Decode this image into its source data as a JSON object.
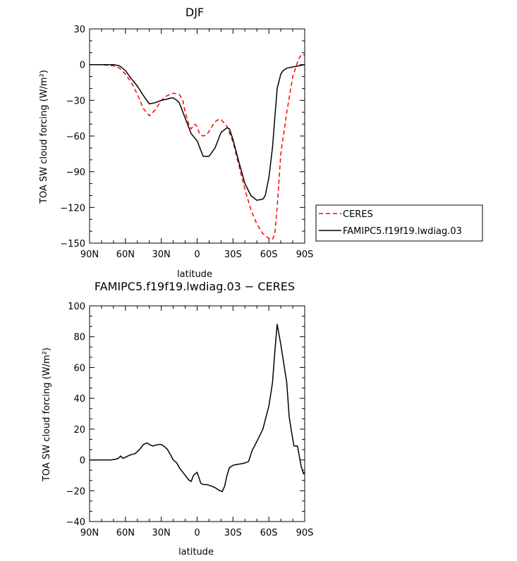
{
  "colors": {
    "ceres": "#ff0000",
    "model": "#000000",
    "axis": "#000000",
    "background": "#ffffff"
  },
  "chart_data": [
    {
      "type": "line",
      "title": "DJF",
      "xlabel": "latitude",
      "ylabel": "TOA SW cloud forcing (W/m²)",
      "xlim": [
        -90,
        90
      ],
      "ylim": [
        -150,
        30
      ],
      "xticks": [
        -90,
        -60,
        -30,
        0,
        30,
        60,
        90
      ],
      "xticklabels": [
        "90N",
        "60N",
        "30N",
        "0",
        "30S",
        "60S",
        "90S"
      ],
      "yticks": [
        -150,
        -120,
        -90,
        -60,
        -30,
        0,
        30
      ],
      "yticklabels": [
        "−150",
        "−120",
        "−90",
        "−60",
        "−30",
        "0",
        "30"
      ],
      "grid": false,
      "legend": "right, outside plot",
      "series": [
        {
          "name": "CERES",
          "style": "dashed",
          "color": "#ff0000",
          "x": [
            -90,
            -80,
            -70,
            -65,
            -60,
            -55,
            -50,
            -45,
            -40,
            -35,
            -30,
            -25,
            -20,
            -15,
            -12,
            -10,
            -7,
            -5,
            -2,
            0,
            2,
            5,
            8,
            10,
            15,
            18,
            20,
            25,
            30,
            35,
            40,
            45,
            50,
            55,
            60,
            63,
            65,
            67,
            70,
            75,
            80,
            85,
            88,
            90
          ],
          "y": [
            0,
            0,
            -1,
            -3,
            -8,
            -15,
            -25,
            -37,
            -43,
            -38,
            -30,
            -26,
            -24,
            -25,
            -30,
            -40,
            -50,
            -54,
            -50,
            -52,
            -58,
            -60,
            -59,
            -56,
            -48,
            -46,
            -46,
            -52,
            -65,
            -85,
            -105,
            -122,
            -134,
            -142,
            -146,
            -147,
            -142,
            -120,
            -75,
            -40,
            -10,
            5,
            9,
            8
          ]
        },
        {
          "name": "FAMIPC5.f19f19.lwdiag.03",
          "style": "solid",
          "color": "#000000",
          "x": [
            -90,
            -80,
            -70,
            -65,
            -60,
            -55,
            -50,
            -45,
            -40,
            -35,
            -30,
            -25,
            -22,
            -20,
            -17,
            -15,
            -10,
            -5,
            0,
            5,
            10,
            15,
            20,
            25,
            27,
            30,
            35,
            40,
            45,
            50,
            55,
            57,
            60,
            63,
            65,
            67,
            70,
            72,
            75,
            80,
            85,
            90
          ],
          "y": [
            0,
            0,
            0,
            -1,
            -5,
            -12,
            -18,
            -26,
            -33,
            -32,
            -30,
            -29,
            -28,
            -28,
            -30,
            -32,
            -45,
            -58,
            -64,
            -77,
            -77,
            -70,
            -57,
            -53,
            -54,
            -63,
            -82,
            -100,
            -110,
            -114,
            -113,
            -110,
            -95,
            -70,
            -45,
            -20,
            -8,
            -5,
            -3,
            -2,
            -1,
            0
          ]
        }
      ]
    },
    {
      "type": "line",
      "title": "FAMIPC5.f19f19.lwdiag.03 − CERES",
      "xlabel": "latitude",
      "ylabel": "TOA SW cloud forcing (W/m²)",
      "xlim": [
        -90,
        90
      ],
      "ylim": [
        -40,
        100
      ],
      "xticks": [
        -90,
        -60,
        -30,
        0,
        30,
        60,
        90
      ],
      "xticklabels": [
        "90N",
        "60N",
        "30N",
        "0",
        "30S",
        "60S",
        "90S"
      ],
      "yticks": [
        -40,
        -20,
        0,
        20,
        40,
        60,
        80,
        100
      ],
      "yticklabels": [
        "−40",
        "−20",
        "0",
        "20",
        "40",
        "60",
        "80",
        "100"
      ],
      "grid": false,
      "series": [
        {
          "color": "#000000",
          "style": "solid",
          "x": [
            -90,
            -80,
            -72,
            -68,
            -66,
            -64,
            -62,
            -58,
            -55,
            -52,
            -48,
            -45,
            -42,
            -40,
            -37,
            -33,
            -30,
            -28,
            -25,
            -22,
            -20,
            -17,
            -15,
            -12,
            -10,
            -7,
            -5,
            -3,
            0,
            3,
            5,
            8,
            10,
            12,
            15,
            17,
            19,
            21,
            23,
            25,
            27,
            30,
            33,
            37,
            40,
            43,
            46,
            50,
            55,
            60,
            63,
            65,
            67,
            70,
            73,
            75,
            77,
            79,
            81,
            84,
            87,
            89,
            90
          ],
          "y": [
            0,
            0,
            0,
            0.5,
            1,
            2.5,
            1,
            2.5,
            3.5,
            4,
            7,
            10,
            11,
            10,
            9,
            10,
            10,
            9,
            7,
            3,
            0,
            -2,
            -5,
            -8,
            -10,
            -13,
            -14,
            -10,
            -8,
            -15,
            -16,
            -16,
            -16.5,
            -17,
            -18,
            -19,
            -20,
            -20.5,
            -17,
            -10,
            -5,
            -3.5,
            -3,
            -2.5,
            -2,
            -1,
            6,
            12,
            20,
            35,
            50,
            70,
            88,
            75,
            60,
            50,
            28,
            18,
            9,
            9,
            -4,
            -9,
            -8
          ]
        }
      ]
    }
  ]
}
